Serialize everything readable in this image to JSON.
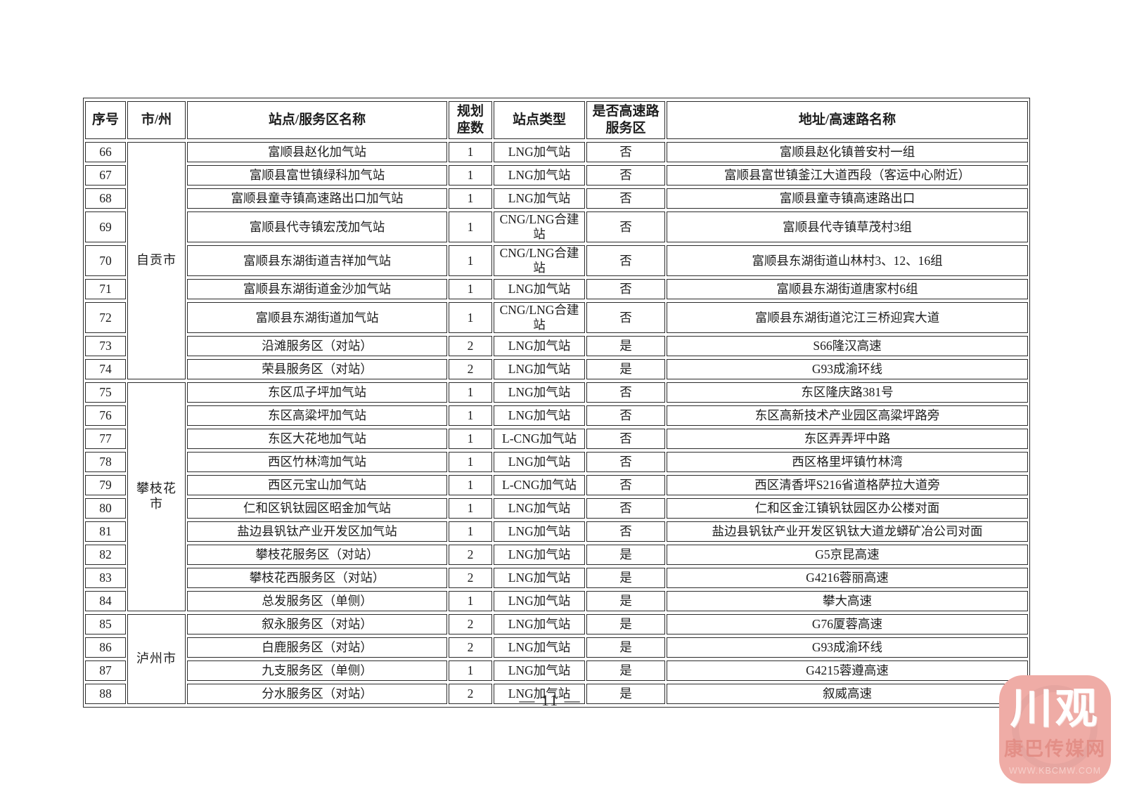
{
  "page": {
    "number_label": "— 11 —"
  },
  "table": {
    "headers": [
      "序号",
      "市/州",
      "站点/服务区名称",
      "规划座数",
      "站点类型",
      "是否高速路服务区",
      "地址/高速路名称"
    ],
    "groups": [
      {
        "city": "自贡市",
        "rows": [
          {
            "no": "66",
            "name": "富顺县赵化加气站",
            "count": "1",
            "type": "LNG加气站",
            "highway": "否",
            "address": "富顺县赵化镇普安村一组"
          },
          {
            "no": "67",
            "name": "富顺县富世镇绿科加气站",
            "count": "1",
            "type": "LNG加气站",
            "highway": "否",
            "address": "富顺县富世镇釜江大道西段（客运中心附近）"
          },
          {
            "no": "68",
            "name": "富顺县童寺镇高速路出口加气站",
            "count": "1",
            "type": "LNG加气站",
            "highway": "否",
            "address": "富顺县童寺镇高速路出口"
          },
          {
            "no": "69",
            "name": "富顺县代寺镇宏茂加气站",
            "count": "1",
            "type": "CNG/LNG合建站",
            "highway": "否",
            "address": "富顺县代寺镇草茂村3组"
          },
          {
            "no": "70",
            "name": "富顺县东湖街道吉祥加气站",
            "count": "1",
            "type": "CNG/LNG合建站",
            "highway": "否",
            "address": "富顺县东湖街道山林村3、12、16组"
          },
          {
            "no": "71",
            "name": "富顺县东湖街道金沙加气站",
            "count": "1",
            "type": "LNG加气站",
            "highway": "否",
            "address": "富顺县东湖街道唐家村6组"
          },
          {
            "no": "72",
            "name": "富顺县东湖街道加气站",
            "count": "1",
            "type": "CNG/LNG合建站",
            "highway": "否",
            "address": "富顺县东湖街道沱江三桥迎宾大道"
          },
          {
            "no": "73",
            "name": "沿滩服务区（对站）",
            "count": "2",
            "type": "LNG加气站",
            "highway": "是",
            "address": "S66隆汉高速"
          },
          {
            "no": "74",
            "name": "荣县服务区（对站）",
            "count": "2",
            "type": "LNG加气站",
            "highway": "是",
            "address": "G93成渝环线"
          }
        ]
      },
      {
        "city": "攀枝花市",
        "rows": [
          {
            "no": "75",
            "name": "东区瓜子坪加气站",
            "count": "1",
            "type": "LNG加气站",
            "highway": "否",
            "address": "东区隆庆路381号"
          },
          {
            "no": "76",
            "name": "东区高粱坪加气站",
            "count": "1",
            "type": "LNG加气站",
            "highway": "否",
            "address": "东区高新技术产业园区高粱坪路旁"
          },
          {
            "no": "77",
            "name": "东区大花地加气站",
            "count": "1",
            "type": "L-CNG加气站",
            "highway": "否",
            "address": "东区弄弄坪中路"
          },
          {
            "no": "78",
            "name": "西区竹林湾加气站",
            "count": "1",
            "type": "LNG加气站",
            "highway": "否",
            "address": "西区格里坪镇竹林湾"
          },
          {
            "no": "79",
            "name": "西区元宝山加气站",
            "count": "1",
            "type": "L-CNG加气站",
            "highway": "否",
            "address": "西区清香坪S216省道格萨拉大道旁"
          },
          {
            "no": "80",
            "name": "仁和区钒钛园区昭金加气站",
            "count": "1",
            "type": "LNG加气站",
            "highway": "否",
            "address": "仁和区金江镇钒钛园区办公楼对面"
          },
          {
            "no": "81",
            "name": "盐边县钒钛产业开发区加气站",
            "count": "1",
            "type": "LNG加气站",
            "highway": "否",
            "address": "盐边县钒钛产业开发区钒钛大道龙蟒矿冶公司对面"
          },
          {
            "no": "82",
            "name": "攀枝花服务区（对站）",
            "count": "2",
            "type": "LNG加气站",
            "highway": "是",
            "address": "G5京昆高速"
          },
          {
            "no": "83",
            "name": "攀枝花西服务区（对站）",
            "count": "2",
            "type": "LNG加气站",
            "highway": "是",
            "address": "G4216蓉丽高速"
          },
          {
            "no": "84",
            "name": "总发服务区（单侧）",
            "count": "1",
            "type": "LNG加气站",
            "highway": "是",
            "address": "攀大高速"
          }
        ]
      },
      {
        "city": "泸州市",
        "rows": [
          {
            "no": "85",
            "name": "叙永服务区（对站）",
            "count": "2",
            "type": "LNG加气站",
            "highway": "是",
            "address": "G76厦蓉高速"
          },
          {
            "no": "86",
            "name": "白鹿服务区（对站）",
            "count": "2",
            "type": "LNG加气站",
            "highway": "是",
            "address": "G93成渝环线"
          },
          {
            "no": "87",
            "name": "九支服务区（单侧）",
            "count": "1",
            "type": "LNG加气站",
            "highway": "是",
            "address": "G4215蓉遵高速"
          },
          {
            "no": "88",
            "name": "分水服务区（对站）",
            "count": "2",
            "type": "LNG加气站",
            "highway": "是",
            "address": "叙威高速"
          }
        ]
      }
    ]
  },
  "watermark": {
    "logo_text": "川观",
    "site_name": "康巴传媒网",
    "site_url": "WWW.KBCMW.COM",
    "accent_color": "#efaca6"
  }
}
